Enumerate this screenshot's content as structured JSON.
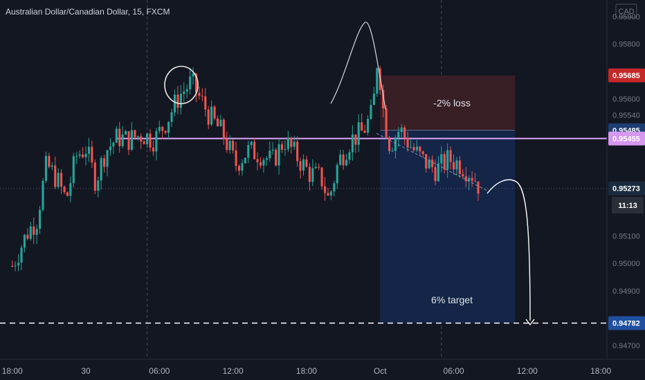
{
  "header": {
    "symbol_title": "Australian Dollar/Canadian Dollar, 15, FXCM",
    "currency_label": "CAD",
    "countdown": "11:13"
  },
  "colors": {
    "background": "#131722",
    "bull": "#26a69a",
    "bear": "#ef5350",
    "stop_zone": "#3a1f26",
    "target_zone": "#14264a",
    "level_line": "#e1a7ff",
    "target_line": "#ffffff",
    "tag_stop": "#c62828",
    "tag_entry": "#1e3e72",
    "tag_level": "#d697ee",
    "tag_current": "#1b2b3f",
    "tag_target": "#1f4fa0"
  },
  "chart_data": {
    "type": "candlestick",
    "title": "Australian Dollar/Canadian Dollar, 15, FXCM",
    "currency": "CAD",
    "ylim": [
      0.9465,
      0.9596
    ],
    "y_ticks": [
      "0.95900",
      "0.95800",
      "0.95600",
      "0.95540",
      "0.95100",
      "0.95000",
      "0.94900",
      "0.94700"
    ],
    "y_tick_values": [
      0.959,
      0.958,
      0.956,
      0.9554,
      0.951,
      0.95,
      0.949,
      0.947
    ],
    "x_ticks": [
      "18:00",
      "30",
      "06:00",
      "12:00",
      "18:00",
      "Oct",
      "06:00",
      "12:00",
      "18:00"
    ],
    "x_tick_hours": [
      0,
      6,
      12,
      18,
      24,
      30,
      36,
      42,
      48
    ],
    "x_range_hours": [
      -1,
      48.5
    ],
    "last_bar_hour": 38.2,
    "vertical_dividers_hours": [
      11,
      35
    ],
    "candle_anchor_closes": [
      [
        0,
        0.9499
      ],
      [
        1.2,
        0.9511
      ],
      [
        2,
        0.9516
      ],
      [
        2.8,
        0.9536
      ],
      [
        3.6,
        0.9531
      ],
      [
        4.4,
        0.9523
      ],
      [
        5.2,
        0.9539
      ],
      [
        6,
        0.9542
      ],
      [
        6.8,
        0.953
      ],
      [
        7.6,
        0.9541
      ],
      [
        8.6,
        0.9546
      ],
      [
        9.4,
        0.9545
      ],
      [
        10.6,
        0.9547
      ],
      [
        11.6,
        0.9545
      ],
      [
        12.6,
        0.9552
      ],
      [
        13.6,
        0.9561
      ],
      [
        14.6,
        0.9566
      ],
      [
        15.2,
        0.9561
      ],
      [
        16.2,
        0.9553
      ],
      [
        17.2,
        0.9547
      ],
      [
        18.2,
        0.9536
      ],
      [
        19.2,
        0.9541
      ],
      [
        20.2,
        0.954
      ],
      [
        21.2,
        0.9537
      ],
      [
        22.2,
        0.9545
      ],
      [
        23.2,
        0.9539
      ],
      [
        24.2,
        0.9533
      ],
      [
        25.2,
        0.9531
      ],
      [
        25.8,
        0.9523
      ],
      [
        26.6,
        0.9537
      ],
      [
        27.6,
        0.9545
      ],
      [
        28.6,
        0.9548
      ],
      [
        29.4,
        0.9555
      ],
      [
        29.8,
        0.9576
      ],
      [
        30.3,
        0.9554
      ],
      [
        30.8,
        0.9543
      ],
      [
        31.6,
        0.9549
      ],
      [
        32.6,
        0.9542
      ],
      [
        33.6,
        0.9537
      ],
      [
        34.6,
        0.9534
      ],
      [
        35.6,
        0.9538
      ],
      [
        36.6,
        0.9536
      ],
      [
        37.6,
        0.9532
      ],
      [
        38.2,
        0.9527
      ]
    ],
    "series": [
      {
        "name": "price_tag_stop",
        "value": 0.95685
      },
      {
        "name": "price_tag_entry",
        "value": 0.95485
      },
      {
        "name": "price_tag_level",
        "value": 0.95455
      },
      {
        "name": "price_tag_current",
        "value": 0.95273
      },
      {
        "name": "price_tag_target",
        "value": 0.94782
      }
    ],
    "position": {
      "start_hour": 30.0,
      "end_hour": 41.0,
      "stop_price": 0.95685,
      "entry_price": 0.95485,
      "target_price": 0.94782,
      "stop_label": "-2% loss",
      "target_label": "6% target"
    },
    "horizontal_level": {
      "price": 0.95455,
      "start_hour": 8.5
    },
    "target_line_price": 0.94782,
    "grid": false
  },
  "price_tags": [
    {
      "label": "0.95685",
      "value": 0.95685,
      "color": "#c62828"
    },
    {
      "label": "0.95485",
      "value": 0.95485,
      "color": "#1e3e72"
    },
    {
      "label": "0.95455",
      "value": 0.95455,
      "color": "#d697ee"
    },
    {
      "label": "0.95273",
      "value": 0.95273,
      "color": "#1b2b3f"
    },
    {
      "label": "0.94782",
      "value": 0.94782,
      "color": "#1f4fa0"
    }
  ]
}
